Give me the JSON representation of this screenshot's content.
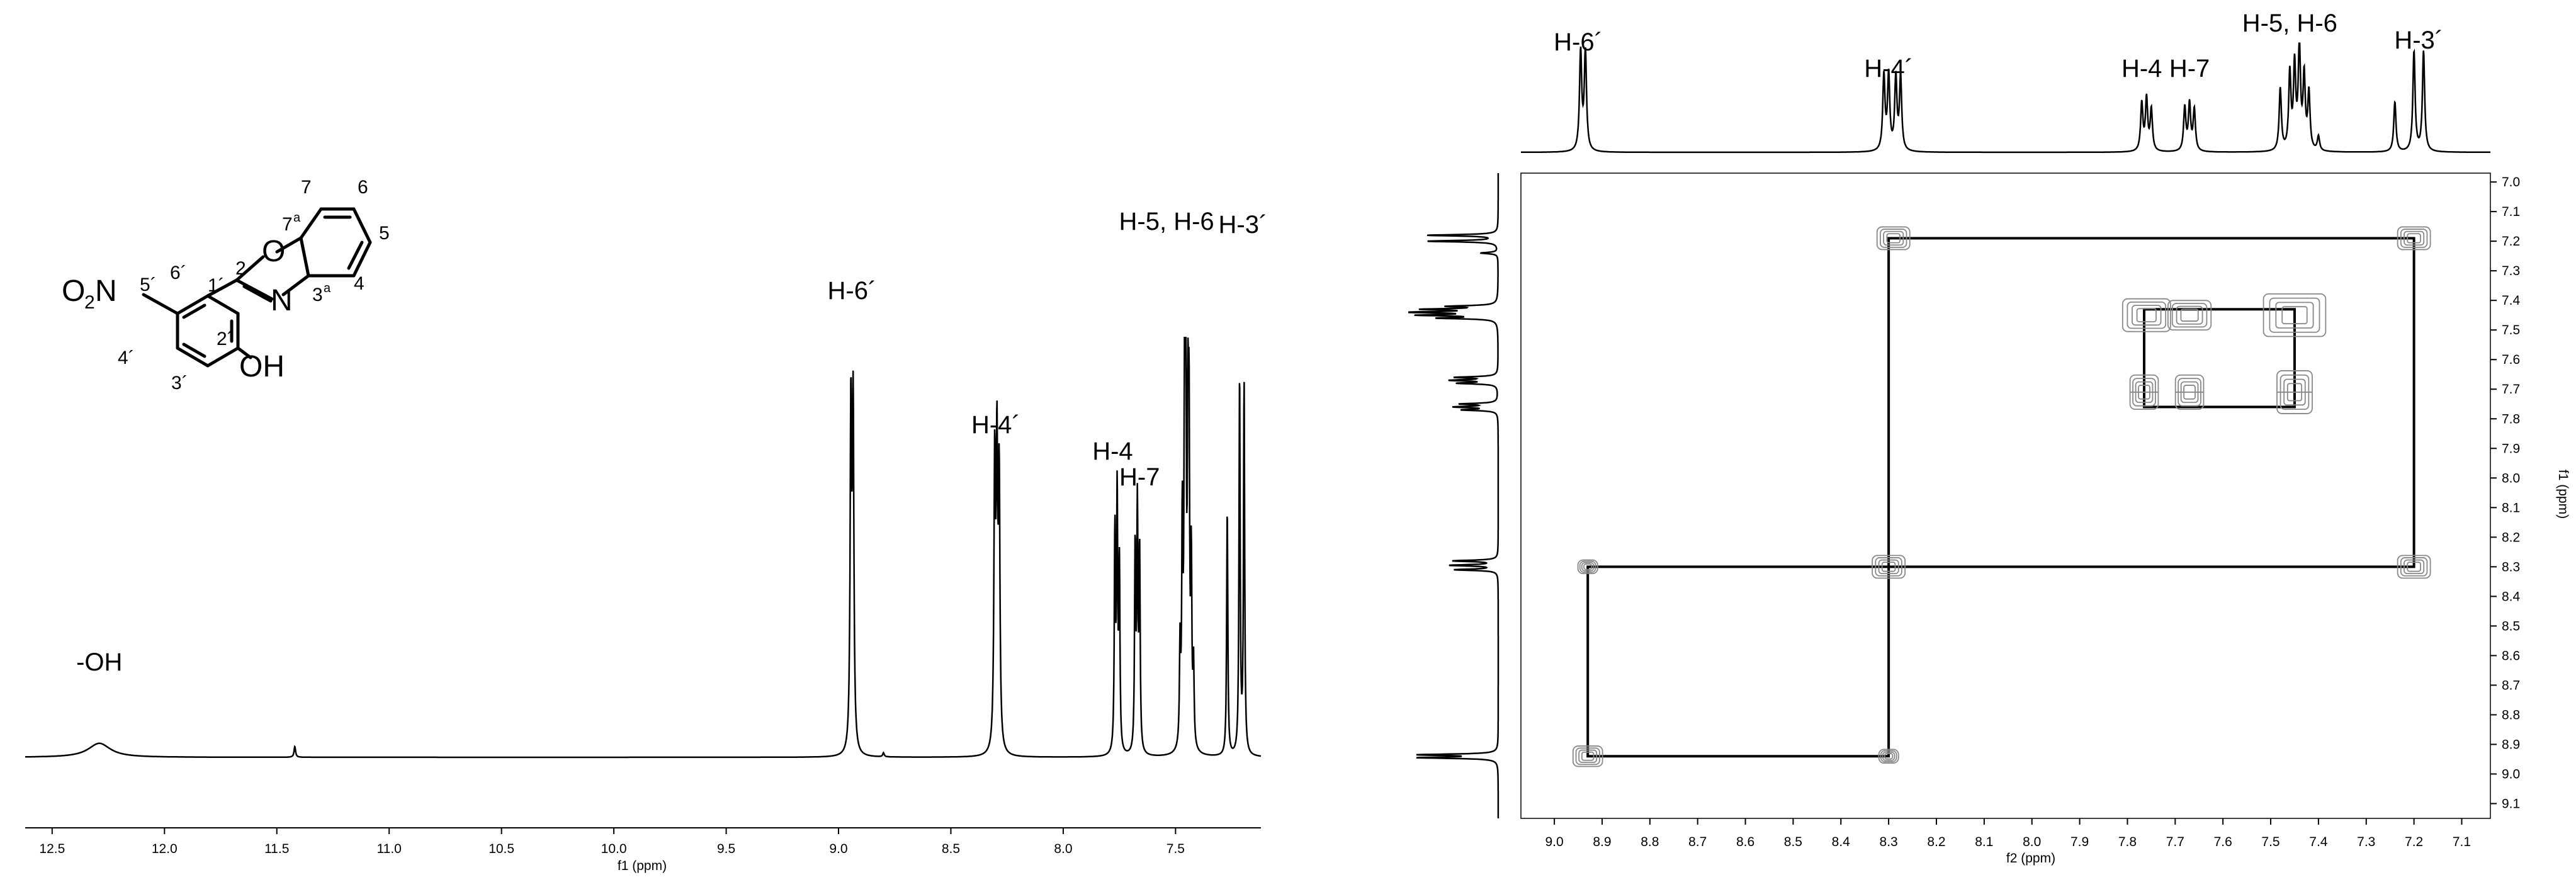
{
  "chart_data": [
    {
      "type": "line",
      "xlabel": "f1 (ppm)",
      "xlim": [
        12.62,
        7.12
      ],
      "x_ticks": [
        "12.5",
        "12.0",
        "11.5",
        "11.0",
        "10.5",
        "10.0",
        "9.5",
        "9.0",
        "8.5",
        "8.0",
        "7.5"
      ],
      "peaks": [
        {
          "shift": 12.29,
          "height": 0.035,
          "width": 0.06,
          "kind": "broad"
        },
        {
          "shift": 11.42,
          "height": 0.027,
          "width": 0.004
        },
        {
          "shift": 8.945,
          "height": 0.85,
          "width": 0.004
        },
        {
          "shift": 8.935,
          "height": 0.85,
          "width": 0.004
        },
        {
          "shift": 8.8,
          "height": 0.01,
          "width": 0.004
        },
        {
          "shift": 8.305,
          "height": 0.7,
          "width": 0.004
        },
        {
          "shift": 8.295,
          "height": 0.71,
          "width": 0.004
        },
        {
          "shift": 8.285,
          "height": 0.66,
          "width": 0.004
        },
        {
          "shift": 7.77,
          "height": 0.55,
          "width": 0.003
        },
        {
          "shift": 7.76,
          "height": 0.64,
          "width": 0.003
        },
        {
          "shift": 7.75,
          "height": 0.46,
          "width": 0.003
        },
        {
          "shift": 7.68,
          "height": 0.51,
          "width": 0.003
        },
        {
          "shift": 7.67,
          "height": 0.6,
          "width": 0.003
        },
        {
          "shift": 7.66,
          "height": 0.5,
          "width": 0.003
        },
        {
          "shift": 7.48,
          "height": 0.25,
          "width": 0.003
        },
        {
          "shift": 7.47,
          "height": 0.55,
          "width": 0.003
        },
        {
          "shift": 7.46,
          "height": 0.77,
          "width": 0.003
        },
        {
          "shift": 7.455,
          "height": 1.0,
          "width": 0.003
        },
        {
          "shift": 7.445,
          "height": 0.74,
          "width": 0.003
        },
        {
          "shift": 7.44,
          "height": 0.72,
          "width": 0.003
        },
        {
          "shift": 7.43,
          "height": 0.45,
          "width": 0.003
        },
        {
          "shift": 7.42,
          "height": 0.2,
          "width": 0.003
        },
        {
          "shift": 7.27,
          "height": 0.62,
          "width": 0.003
        },
        {
          "shift": 7.215,
          "height": 0.95,
          "width": 0.003
        },
        {
          "shift": 7.195,
          "height": 0.93,
          "width": 0.003
        }
      ],
      "annotations": [
        {
          "text": "-OH",
          "shift": 12.29
        },
        {
          "text": "H-6´",
          "shift": 8.94
        },
        {
          "text": "H-4´",
          "shift": 8.3
        },
        {
          "text": "H-4",
          "shift": 7.78
        },
        {
          "text": "H-7",
          "shift": 7.66
        },
        {
          "text": "H-5, H-6",
          "shift": 7.54
        },
        {
          "text": "H-3´",
          "shift": 7.2
        }
      ]
    },
    {
      "type": "heatmap",
      "xlabel": "f2 (ppm)",
      "ylabel": "f1 (ppm)",
      "xlim": [
        9.07,
        7.04
      ],
      "ylim": [
        6.97,
        9.15
      ],
      "x_ticks": [
        "9.0",
        "8.9",
        "8.8",
        "8.7",
        "8.6",
        "8.5",
        "8.4",
        "8.3",
        "8.2",
        "8.1",
        "8.0",
        "7.9",
        "7.8",
        "7.7",
        "7.6",
        "7.5",
        "7.4",
        "7.3",
        "7.2",
        "7.1"
      ],
      "y_ticks": [
        "7.0",
        "7.1",
        "7.2",
        "7.3",
        "7.4",
        "7.5",
        "7.6",
        "7.7",
        "7.8",
        "7.9",
        "8.0",
        "8.1",
        "8.2",
        "8.3",
        "8.4",
        "8.5",
        "8.6",
        "8.7",
        "8.8",
        "8.9",
        "9.0",
        "9.1"
      ],
      "top_projection": [
        {
          "shift": 8.945,
          "height": 0.95
        },
        {
          "shift": 8.935,
          "height": 0.95
        },
        {
          "shift": 8.31,
          "height": 0.72
        },
        {
          "shift": 8.3,
          "height": 0.72
        },
        {
          "shift": 8.285,
          "height": 0.7
        },
        {
          "shift": 8.275,
          "height": 0.7
        },
        {
          "shift": 7.77,
          "height": 0.46
        },
        {
          "shift": 7.76,
          "height": 0.5
        },
        {
          "shift": 7.75,
          "height": 0.4
        },
        {
          "shift": 7.68,
          "height": 0.42
        },
        {
          "shift": 7.67,
          "height": 0.45
        },
        {
          "shift": 7.66,
          "height": 0.4
        },
        {
          "shift": 7.48,
          "height": 0.6
        },
        {
          "shift": 7.46,
          "height": 0.74
        },
        {
          "shift": 7.45,
          "height": 0.8
        },
        {
          "shift": 7.44,
          "height": 1.0
        },
        {
          "shift": 7.43,
          "height": 0.7
        },
        {
          "shift": 7.42,
          "height": 0.55
        },
        {
          "shift": 7.4,
          "height": 0.14
        },
        {
          "shift": 7.24,
          "height": 0.48
        },
        {
          "shift": 7.2,
          "height": 0.96
        },
        {
          "shift": 7.18,
          "height": 0.96
        }
      ],
      "left_projection": [
        {
          "shift": 7.18,
          "height": 0.82
        },
        {
          "shift": 7.2,
          "height": 0.82
        },
        {
          "shift": 7.24,
          "height": 0.2
        },
        {
          "shift": 7.42,
          "height": 0.55
        },
        {
          "shift": 7.43,
          "height": 0.8
        },
        {
          "shift": 7.44,
          "height": 1.0
        },
        {
          "shift": 7.45,
          "height": 0.85
        },
        {
          "shift": 7.46,
          "height": 0.65
        },
        {
          "shift": 7.66,
          "height": 0.48
        },
        {
          "shift": 7.67,
          "height": 0.52
        },
        {
          "shift": 7.68,
          "height": 0.45
        },
        {
          "shift": 7.75,
          "height": 0.42
        },
        {
          "shift": 7.76,
          "height": 0.48
        },
        {
          "shift": 7.77,
          "height": 0.4
        },
        {
          "shift": 8.28,
          "height": 0.52
        },
        {
          "shift": 8.295,
          "height": 0.55
        },
        {
          "shift": 8.31,
          "height": 0.5
        },
        {
          "shift": 8.935,
          "height": 0.9
        },
        {
          "shift": 8.945,
          "height": 0.9
        }
      ],
      "cross_peaks": [
        {
          "f2": 8.29,
          "f1": 7.19,
          "size": 1.0,
          "shape": "square"
        },
        {
          "f2": 7.2,
          "f1": 7.19,
          "size": 1.0,
          "shape": "square"
        },
        {
          "f2": 7.76,
          "f1": 7.45,
          "size": 1.0,
          "shape": "wide"
        },
        {
          "f2": 7.67,
          "f1": 7.45,
          "size": 0.9,
          "shape": "wide"
        },
        {
          "f2": 7.45,
          "f1": 7.45,
          "size": 1.3,
          "shape": "wide"
        },
        {
          "f2": 7.765,
          "f1": 7.71,
          "size": 0.8,
          "shape": "double"
        },
        {
          "f2": 7.67,
          "f1": 7.71,
          "size": 0.8,
          "shape": "double"
        },
        {
          "f2": 7.45,
          "f1": 7.71,
          "size": 1.0,
          "shape": "double"
        },
        {
          "f2": 8.93,
          "f1": 8.3,
          "size": 0.6,
          "shape": "square"
        },
        {
          "f2": 8.3,
          "f1": 8.3,
          "size": 1.0,
          "shape": "square"
        },
        {
          "f2": 7.2,
          "f1": 8.3,
          "size": 1.0,
          "shape": "square"
        },
        {
          "f2": 8.93,
          "f1": 8.94,
          "size": 0.9,
          "shape": "square"
        },
        {
          "f2": 8.3,
          "f1": 8.94,
          "size": 0.6,
          "shape": "square"
        }
      ],
      "connection_boxes": [
        {
          "f2": [
            8.93,
            8.3
          ],
          "f1": [
            8.3,
            8.94
          ]
        },
        {
          "f2": [
            8.3,
            7.2
          ],
          "f1": [
            7.19,
            8.3
          ]
        },
        {
          "f2": [
            7.765,
            7.45
          ],
          "f1": [
            7.43,
            7.76
          ]
        }
      ],
      "annotations": [
        {
          "text": "H-6´",
          "shift": 8.95
        },
        {
          "text": "H-4´",
          "shift": 8.3
        },
        {
          "text": "H-4",
          "shift": 7.77
        },
        {
          "text": "H-7",
          "shift": 7.67
        },
        {
          "text": "H-5, H-6",
          "shift": 7.46
        },
        {
          "text": "H-3´",
          "shift": 7.19
        }
      ]
    }
  ],
  "structure": {
    "labels": {
      "o2n_o": "O",
      "o2n_sub": "2",
      "o2n_n": "N",
      "p5": "5´",
      "p6": "6´",
      "p4": "4´",
      "p3": "3´",
      "p1": "1´",
      "p2": "2´",
      "oh": "OH",
      "c2": "2",
      "ring_o": "O",
      "ring_n": "N",
      "p7a": "7",
      "p7a_sup": "a",
      "p3a": "3",
      "p3a_sup": "a",
      "p7": "7",
      "p6b": "6",
      "p5b": "5",
      "p4b": "4"
    }
  }
}
